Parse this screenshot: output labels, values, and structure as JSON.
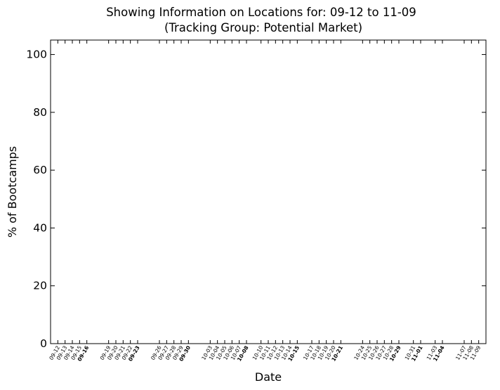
{
  "chart_data": {
    "type": "line",
    "title": "Showing Information on Locations for: 09-12 to 11-09",
    "subtitle": "(Tracking Group: Potential Market)",
    "xlabel": "Date",
    "ylabel": "% of Bootcamps",
    "ylim": [
      0,
      105
    ],
    "yticks": [
      0,
      20,
      40,
      60,
      80,
      100
    ],
    "xrange": [
      "09-11",
      "11-10"
    ],
    "grid": false,
    "series": [],
    "xticks": [
      {
        "date": "09-12",
        "bold": false
      },
      {
        "date": "09-13",
        "bold": false
      },
      {
        "date": "09-14",
        "bold": false
      },
      {
        "date": "09-15",
        "bold": false
      },
      {
        "date": "09-16",
        "bold": true
      },
      {
        "date": "09-19",
        "bold": false
      },
      {
        "date": "09-20",
        "bold": false
      },
      {
        "date": "09-21",
        "bold": false
      },
      {
        "date": "09-22",
        "bold": false
      },
      {
        "date": "09-23",
        "bold": true
      },
      {
        "date": "09-26",
        "bold": false
      },
      {
        "date": "09-27",
        "bold": false
      },
      {
        "date": "09-28",
        "bold": false
      },
      {
        "date": "09-29",
        "bold": false
      },
      {
        "date": "09-30",
        "bold": true
      },
      {
        "date": "10-03",
        "bold": false
      },
      {
        "date": "10-04",
        "bold": false
      },
      {
        "date": "10-05",
        "bold": false
      },
      {
        "date": "10-06",
        "bold": false
      },
      {
        "date": "10-07",
        "bold": false
      },
      {
        "date": "10-08",
        "bold": true
      },
      {
        "date": "10-10",
        "bold": false
      },
      {
        "date": "10-11",
        "bold": false
      },
      {
        "date": "10-12",
        "bold": false
      },
      {
        "date": "10-13",
        "bold": false
      },
      {
        "date": "10-14",
        "bold": false
      },
      {
        "date": "10-15",
        "bold": true
      },
      {
        "date": "10-17",
        "bold": false
      },
      {
        "date": "10-18",
        "bold": false
      },
      {
        "date": "10-19",
        "bold": false
      },
      {
        "date": "10-20",
        "bold": false
      },
      {
        "date": "10-21",
        "bold": true
      },
      {
        "date": "10-24",
        "bold": false
      },
      {
        "date": "10-25",
        "bold": false
      },
      {
        "date": "10-26",
        "bold": false
      },
      {
        "date": "10-27",
        "bold": false
      },
      {
        "date": "10-28",
        "bold": false
      },
      {
        "date": "10-29",
        "bold": true
      },
      {
        "date": "10-31",
        "bold": false
      },
      {
        "date": "11-01",
        "bold": true
      },
      {
        "date": "11-03",
        "bold": false
      },
      {
        "date": "11-04",
        "bold": true
      },
      {
        "date": "11-07",
        "bold": false
      },
      {
        "date": "11-08",
        "bold": false
      },
      {
        "date": "11-09",
        "bold": false
      }
    ]
  }
}
